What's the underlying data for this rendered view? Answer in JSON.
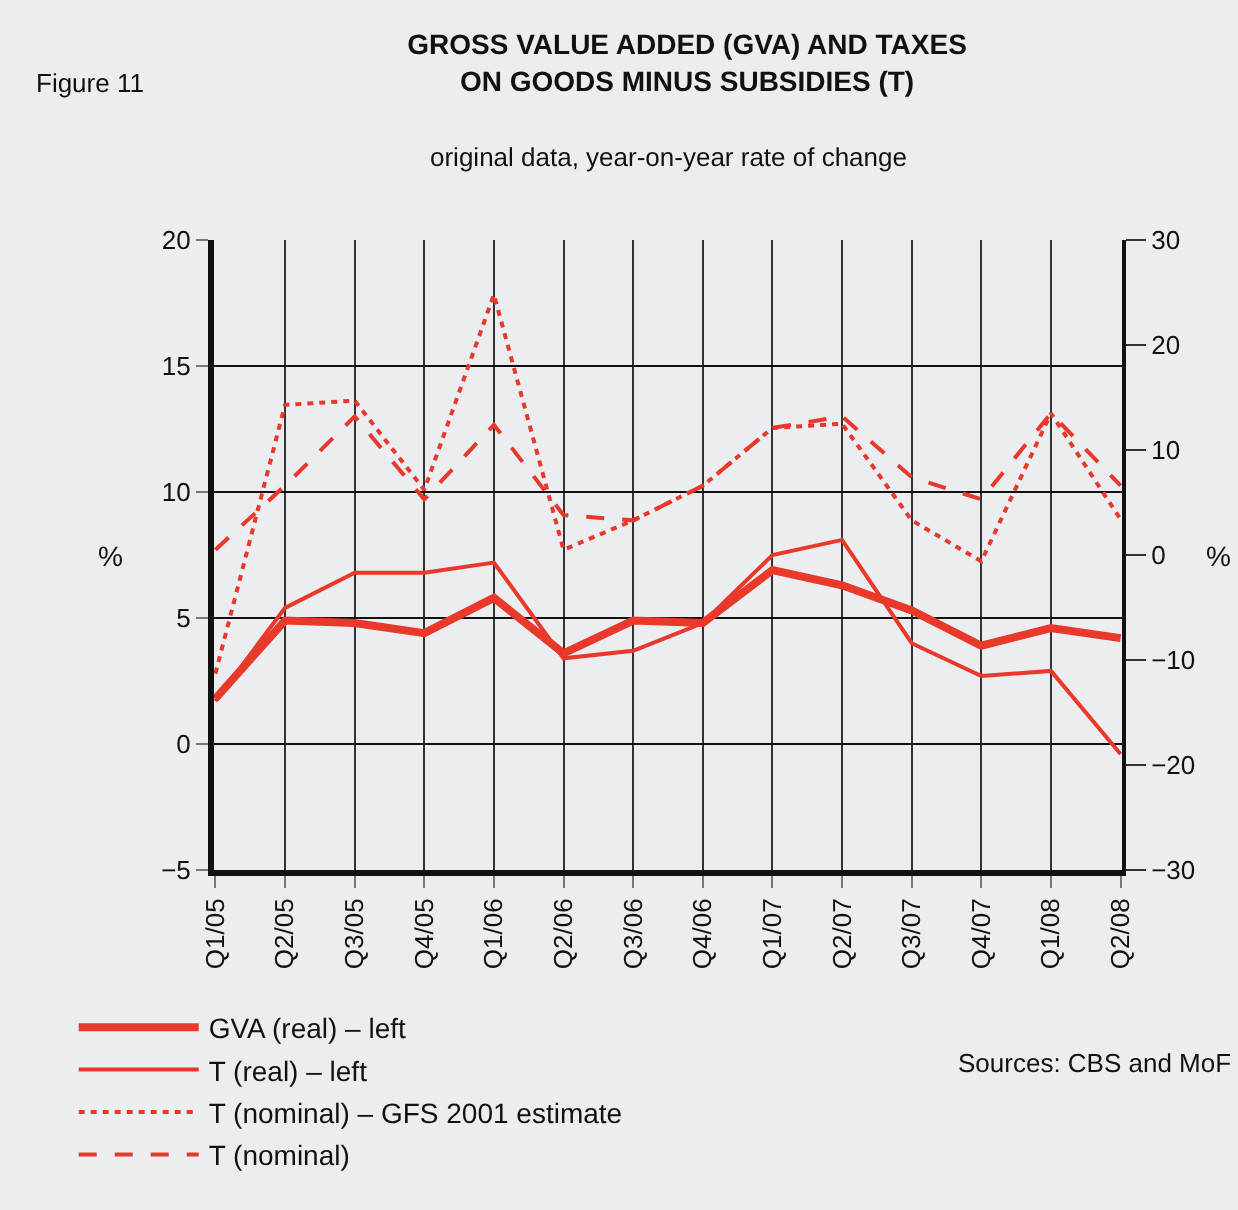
{
  "chart_data": {
    "type": "line",
    "title": "GROSS VALUE ADDED (GVA) AND TAXES\nON GOODS MINUS SUBSIDIES (T)",
    "subtitle": "original data, year-on-year rate of change",
    "ylabel": "%",
    "y2label": "%",
    "annotations": [
      "Figure 11",
      "Sources: CBS and MoF"
    ],
    "categories": [
      "Q1/05",
      "Q2/05",
      "Q3/05",
      "Q4/05",
      "Q1/06",
      "Q2/06",
      "Q3/06",
      "Q4/06",
      "Q1/07",
      "Q2/07",
      "Q3/07",
      "Q4/07",
      "Q1/08",
      "Q2/08"
    ],
    "series": [
      {
        "name": "GVA (real) – left",
        "color": "#e8392b",
        "line_style": "solid",
        "values": [
          1.8,
          4.9,
          4.8,
          4.4,
          5.8,
          3.6,
          4.9,
          4.8,
          6.9,
          6.3,
          5.3,
          3.9,
          4.6,
          4.2
        ]
      },
      {
        "name": "T (real) – left",
        "color": "#e8392b",
        "line_style": "solid",
        "values": [
          1.7,
          5.4,
          6.8,
          6.8,
          7.2,
          3.4,
          3.7,
          4.8,
          7.5,
          8.1,
          4.0,
          2.7,
          2.9,
          -0.4
        ]
      },
      {
        "name": "T (nominal) – GFS 2001 estimate",
        "color": "#e8392b",
        "line_style": "dotted",
        "axis": "y2",
        "values": [
          -11.3,
          14.3,
          14.7,
          6.2,
          24.8,
          0.5,
          3.3,
          6.6,
          12.1,
          12.5,
          3.3,
          -0.6,
          13.5,
          3.4
        ]
      },
      {
        "name": "T (nominal)",
        "color": "#e8392b",
        "line_style": "dashed",
        "axis": "y2",
        "values": [
          0.5,
          6.6,
          13.2,
          5.3,
          12.4,
          3.8,
          3.3,
          6.6,
          12.1,
          13.2,
          7.4,
          5.3,
          13.5,
          6.6
        ]
      }
    ],
    "ylim": [
      -5,
      20
    ],
    "yticks": [
      -5,
      0,
      5,
      10,
      15,
      20
    ],
    "y2lim": [
      -30,
      30
    ],
    "y2ticks": [
      -30,
      -20,
      -10,
      0,
      10,
      20,
      30
    ],
    "grid": true,
    "legend": "bottom",
    "marker": "none"
  }
}
